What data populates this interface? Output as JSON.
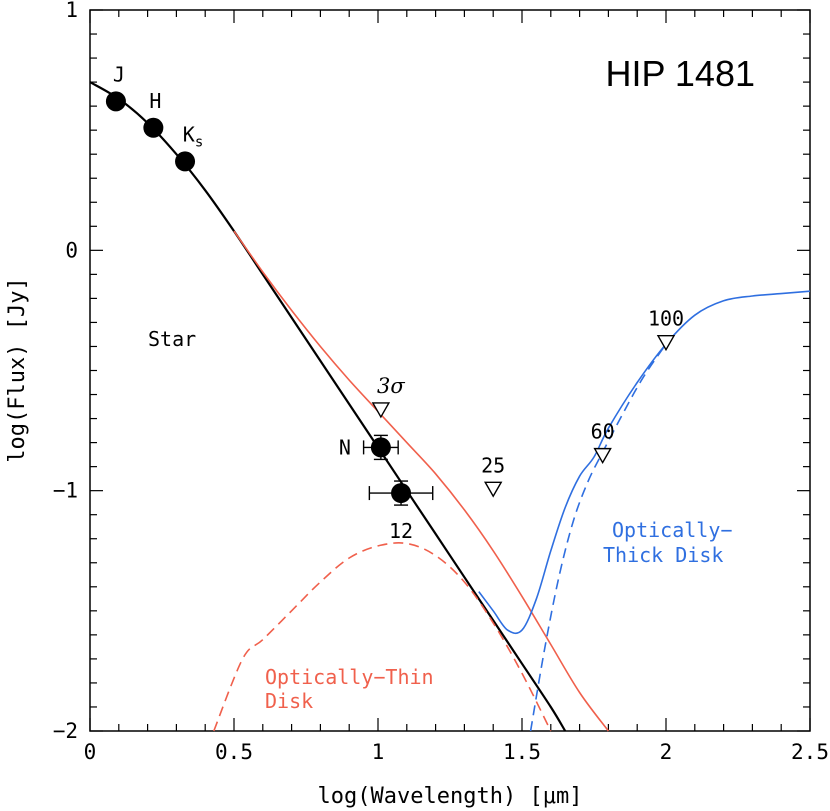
{
  "chart_data": {
    "type": "scatter",
    "title": "HIP 1481",
    "xlabel": "log(Wavelength) [μm]",
    "ylabel": "log(Flux) [Jy]",
    "xlim": [
      0,
      2.5
    ],
    "ylim": [
      -2,
      1
    ],
    "x_ticks": [
      {
        "value": 0,
        "label": "0"
      },
      {
        "value": 0.5,
        "label": "0.5"
      },
      {
        "value": 1,
        "label": "1"
      },
      {
        "value": 1.5,
        "label": "1.5"
      },
      {
        "value": 2,
        "label": "2"
      },
      {
        "value": 2.5,
        "label": "2.5"
      }
    ],
    "y_ticks": [
      {
        "value": 1,
        "label": "1"
      },
      {
        "value": 0,
        "label": "0"
      },
      {
        "value": -1,
        "label": "−1"
      },
      {
        "value": -2,
        "label": "−2"
      }
    ],
    "colors": {
      "star": "#000000",
      "thin": "#f0604c",
      "thick": "#2f6fe0"
    },
    "detections": [
      {
        "label": "J",
        "x": 0.09,
        "y": 0.62,
        "xerr": 0.02
      },
      {
        "label": "H",
        "x": 0.22,
        "y": 0.51,
        "xerr": 0.02
      },
      {
        "label": "Ks",
        "x": 0.33,
        "y": 0.37,
        "xerr": 0.02
      },
      {
        "label": "N",
        "x": 1.01,
        "y": -0.82,
        "xerr": 0.06,
        "yerr": 0.05
      },
      {
        "label": "12",
        "x": 1.08,
        "y": -1.01,
        "xerr": 0.11,
        "yerr": 0.05
      }
    ],
    "upper_limits": [
      {
        "label": "3σ",
        "x": 1.01,
        "y": -0.66
      },
      {
        "label": "25",
        "x": 1.4,
        "y": -0.99
      },
      {
        "label": "60",
        "x": 1.78,
        "y": -0.85
      },
      {
        "label": "100",
        "x": 2.0,
        "y": -0.38
      }
    ],
    "series": [
      {
        "name": "Star",
        "style": "solid",
        "color": "#000000",
        "x": [
          0,
          0.1,
          0.2,
          0.3,
          0.4,
          0.5,
          0.6,
          0.7,
          0.8,
          0.9,
          1.0,
          1.1,
          1.2,
          1.3,
          1.4,
          1.5,
          1.6,
          1.65
        ],
        "y": [
          0.7,
          0.63,
          0.53,
          0.4,
          0.25,
          0.08,
          -0.1,
          -0.28,
          -0.46,
          -0.64,
          -0.82,
          -1.0,
          -1.18,
          -1.36,
          -1.54,
          -1.72,
          -1.9,
          -2.0
        ]
      },
      {
        "name": "Star + Optically-Thin Disk",
        "style": "solid",
        "color": "#f0604c",
        "x": [
          0.5,
          0.6,
          0.7,
          0.8,
          0.9,
          1.0,
          1.1,
          1.2,
          1.3,
          1.4,
          1.5,
          1.6,
          1.7,
          1.8
        ],
        "y": [
          0.08,
          -0.09,
          -0.25,
          -0.4,
          -0.54,
          -0.67,
          -0.8,
          -0.93,
          -1.08,
          -1.25,
          -1.44,
          -1.64,
          -1.84,
          -2.0
        ]
      },
      {
        "name": "Optically-Thin Disk",
        "style": "dashed",
        "color": "#f0604c",
        "x": [
          0.43,
          0.53,
          0.6,
          0.7,
          0.8,
          0.9,
          1.0,
          1.1,
          1.2,
          1.3,
          1.4,
          1.5,
          1.6
        ],
        "y": [
          -2.0,
          -1.7,
          -1.62,
          -1.5,
          -1.38,
          -1.28,
          -1.23,
          -1.22,
          -1.27,
          -1.38,
          -1.55,
          -1.76,
          -2.0
        ]
      },
      {
        "name": "Star + Optically-Thick Disk",
        "style": "solid",
        "color": "#2f6fe0",
        "x": [
          1.35,
          1.4,
          1.45,
          1.5,
          1.55,
          1.6,
          1.65,
          1.7,
          1.75,
          1.8,
          1.9,
          2.0,
          2.1,
          2.2,
          2.3,
          2.4,
          2.5
        ],
        "y": [
          -1.42,
          -1.5,
          -1.58,
          -1.58,
          -1.45,
          -1.25,
          -1.07,
          -0.94,
          -0.86,
          -0.74,
          -0.55,
          -0.39,
          -0.27,
          -0.21,
          -0.19,
          -0.18,
          -0.17
        ]
      },
      {
        "name": "Optically-Thick Disk",
        "style": "dashed",
        "color": "#2f6fe0",
        "x": [
          1.53,
          1.58,
          1.63,
          1.68,
          1.73,
          1.78,
          1.85,
          1.92,
          2.0
        ],
        "y": [
          -2.0,
          -1.65,
          -1.35,
          -1.12,
          -0.96,
          -0.84,
          -0.68,
          -0.53,
          -0.39
        ]
      }
    ],
    "annotations": {
      "star": "Star",
      "thin_line1": "Optically−Thin",
      "thin_line2": "Disk",
      "thick_line1": "Optically−",
      "thick_line2": "Thick Disk"
    }
  }
}
